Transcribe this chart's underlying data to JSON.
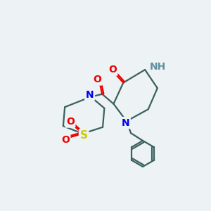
{
  "bg_color": "#edf2f4",
  "atom_colors": {
    "N": "#0000ee",
    "O": "#ee0000",
    "S": "#cccc00",
    "C": "#3a3a3a",
    "NH": "#6090a0"
  },
  "bond_color": "#3a6060",
  "bond_width": 1.6,
  "font_size": 10
}
